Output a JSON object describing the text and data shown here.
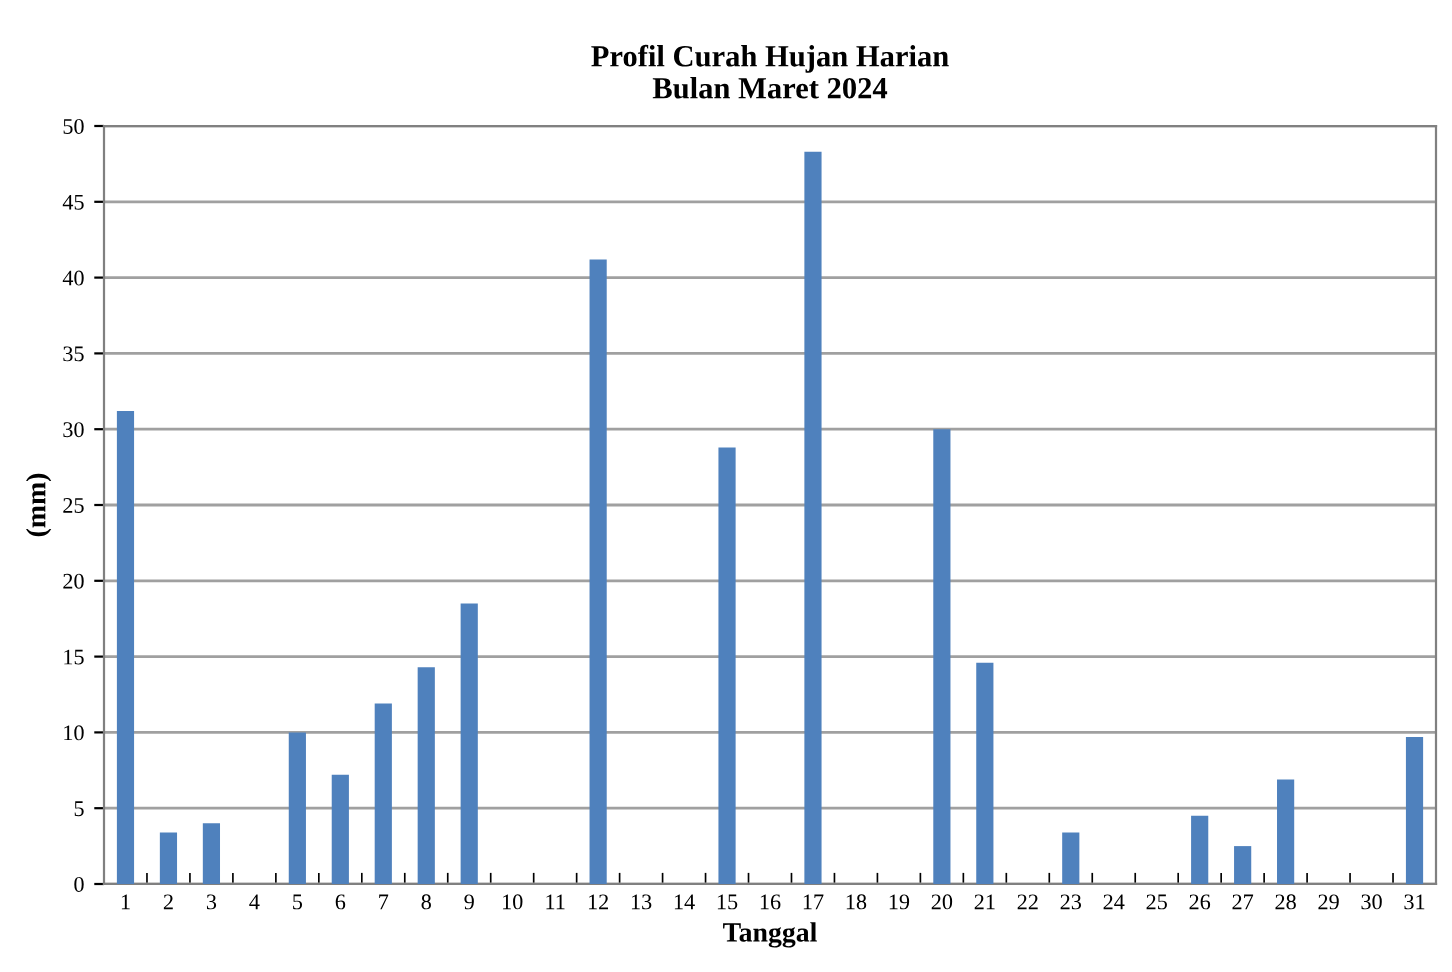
{
  "chart_data": {
    "type": "bar",
    "title": "Profil Curah Hujan Harian\nBulan Maret 2024",
    "xlabel": "Tanggal",
    "ylabel": "(mm)",
    "categories": [
      "1",
      "2",
      "3",
      "4",
      "5",
      "6",
      "7",
      "8",
      "9",
      "10",
      "11",
      "12",
      "13",
      "14",
      "15",
      "16",
      "17",
      "18",
      "19",
      "20",
      "21",
      "22",
      "23",
      "24",
      "25",
      "26",
      "27",
      "28",
      "29",
      "30",
      "31"
    ],
    "values": [
      31.2,
      3.4,
      4,
      0,
      10,
      7.2,
      11.9,
      14.3,
      18.5,
      0,
      0,
      41.2,
      0,
      0,
      28.8,
      0,
      48.3,
      0,
      0,
      30,
      14.6,
      0,
      3.4,
      0,
      0,
      4.5,
      2.5,
      6.9,
      0,
      0,
      9.7
    ],
    "color": "#4f81bd",
    "ylim": [
      0,
      50
    ],
    "yticks": [
      0,
      5,
      10,
      15,
      20,
      25,
      30,
      35,
      40,
      45,
      50
    ],
    "grid": "y",
    "legend": false
  }
}
